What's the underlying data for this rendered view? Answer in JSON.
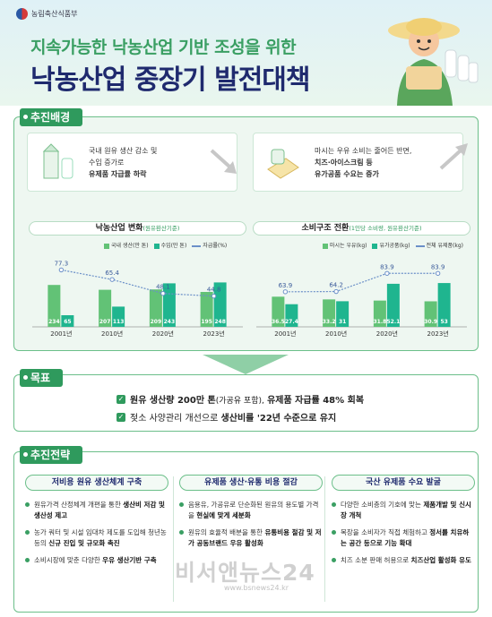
{
  "header": {
    "ministry": "농림축산식품부",
    "title_line1": "지속가능한 낙농산업 기반 조성을 위한",
    "title_line2": "낙농산업 중장기 발전대책"
  },
  "sections": {
    "background": "추진배경",
    "goal": "목표",
    "strategy": "추진전략"
  },
  "background_cards": [
    {
      "line1": "국내 원유 생산 감소 및",
      "line2": "수입 증가로",
      "line3": "유제품 자급률 하락"
    },
    {
      "line1": "마시는 우유 소비는 줄어든 반면,",
      "line2": "치즈·아이스크림 등",
      "line3": "유가공품 수요는 증가"
    }
  ],
  "chart_data": [
    {
      "type": "bar",
      "title": "낙농산업 변화",
      "subtitle": "(원유환산기준)",
      "categories": [
        "2001년",
        "2010년",
        "2020년",
        "2023년"
      ],
      "series": [
        {
          "name": "국내 생산(만 톤)",
          "values": [
            234,
            207,
            209,
            195
          ]
        },
        {
          "name": "수입(만 톤)",
          "values": [
            65,
            113,
            243,
            248
          ]
        }
      ],
      "line_series": {
        "name": "자급률(%)",
        "values": [
          77.3,
          65.4,
          48.1,
          44.8
        ]
      },
      "ylim": [
        0,
        300
      ]
    },
    {
      "type": "bar",
      "title": "소비구조 전환",
      "subtitle": "(1인당 소비량, 원유환산기준)",
      "categories": [
        "2001년",
        "2010년",
        "2020년",
        "2023년"
      ],
      "series": [
        {
          "name": "마시는 우유(kg)",
          "values": [
            36.5,
            33.2,
            31.8,
            30.9
          ]
        },
        {
          "name": "유가공품(kg)",
          "values": [
            27.4,
            31,
            52.1,
            53
          ]
        }
      ],
      "line_series": {
        "name": "전체 유제품(kg)",
        "values": [
          63.9,
          64.2,
          83.9,
          83.9
        ]
      },
      "ylim": [
        0,
        65
      ]
    }
  ],
  "goal": {
    "item1_bold": "원유 생산량 200만 톤",
    "item1_mid": "(가공유 포함),",
    "item1_bold2": "유제품 자급률 48% 회복",
    "item2_pre": "젖소 사양관리 개선으로",
    "item2_bold": "생산비를 '22년 수준으로 유지"
  },
  "strategy": {
    "columns": [
      {
        "heading": "저비용 원유 생산체계 구축",
        "bullets": [
          {
            "pre": "원유가격 산정체계 개편을 통한",
            "bold": "생산비 저감 및 생산성 제고"
          },
          {
            "pre": "농가 쿼터 및 시설 임대차 제도를 도입해 청년농 등의",
            "bold": "신규 진입 및 규모화 촉진"
          },
          {
            "pre": "소비시장에 맞춘 다양한",
            "bold": "우유 생산기반 구축"
          }
        ]
      },
      {
        "heading": "유제품 생산·유통 비용 절감",
        "bullets": [
          {
            "pre": "음용유, 가공유로 단순화된 원유의 용도별 가격을",
            "bold": "현실에 맞게 세분화"
          },
          {
            "pre": "원유의 효율적 배분을 통한",
            "bold": "유통비용 절감 및 저가 공동브랜드 우유 활성화"
          }
        ]
      },
      {
        "heading": "국산 유제품 수요 발굴",
        "bullets": [
          {
            "pre": "다양한 소비층의 기호에 맞는",
            "bold": "제품개발 및 신시장 개척"
          },
          {
            "pre": "목장을 소비자가 직접 체험하고",
            "bold": "정서를 치유하는 공간 등으로 기능 확대"
          },
          {
            "pre": "치즈 소분 판매 허용으로",
            "bold": "치즈산업 활성화 유도"
          }
        ]
      }
    ]
  },
  "watermark": {
    "text": "비서앤뉴스24",
    "url": "www.bsnews24.kr"
  },
  "colors": {
    "green": "#2f9a5d",
    "light_green": "#62c276",
    "teal": "#1fb58f",
    "line": "#6b90c8",
    "navy": "#1f2a6e"
  }
}
